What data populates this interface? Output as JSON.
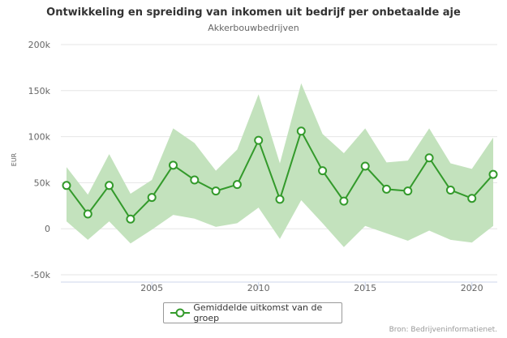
{
  "chart_data": {
    "type": "line",
    "title": "Ontwikkeling en spreiding van inkomen uit bedrijf per onbetaalde aje",
    "subtitle": "Akkerbouwbedrijven",
    "ylabel": "EUR",
    "xlabel": "",
    "ylim": [
      -50000,
      200000
    ],
    "yticks": [
      -50000,
      0,
      50000,
      100000,
      150000,
      200000
    ],
    "ytick_labels": [
      "-50k",
      "0",
      "50k",
      "100k",
      "150k",
      "200k"
    ],
    "xticks": [
      2005,
      2010,
      2015,
      2020
    ],
    "xtick_labels": [
      "2005",
      "2010",
      "2015",
      "2020"
    ],
    "x": [
      2001,
      2002,
      2003,
      2004,
      2005,
      2006,
      2007,
      2008,
      2009,
      2010,
      2011,
      2012,
      2013,
      2014,
      2015,
      2016,
      2017,
      2018,
      2019,
      2020,
      2021
    ],
    "series": [
      {
        "name": "Gemiddelde uitkomst van de groep",
        "color": "#339a2b",
        "values": [
          47000,
          16000,
          47000,
          10500,
          34000,
          69000,
          53000,
          41000,
          48000,
          96000,
          32000,
          106000,
          63000,
          30000,
          68000,
          43000,
          41000,
          77000,
          42000,
          33000,
          59000
        ]
      }
    ],
    "band": {
      "color": "#c3e2bd",
      "upper": [
        67000,
        37000,
        81000,
        38000,
        53000,
        109000,
        93000,
        63000,
        86000,
        146000,
        71000,
        158000,
        103000,
        82000,
        109000,
        72000,
        74000,
        109000,
        71000,
        65000,
        99000
      ],
      "lower": [
        8000,
        -12000,
        8000,
        -16000,
        -1000,
        15000,
        11000,
        2000,
        6000,
        23000,
        -11000,
        31000,
        6000,
        -20000,
        3000,
        -5000,
        -13000,
        -2000,
        -12000,
        -15000,
        3000
      ]
    },
    "grid": true,
    "legend": "bottom"
  },
  "credit": "Bron: Bedrijveninformatienet."
}
